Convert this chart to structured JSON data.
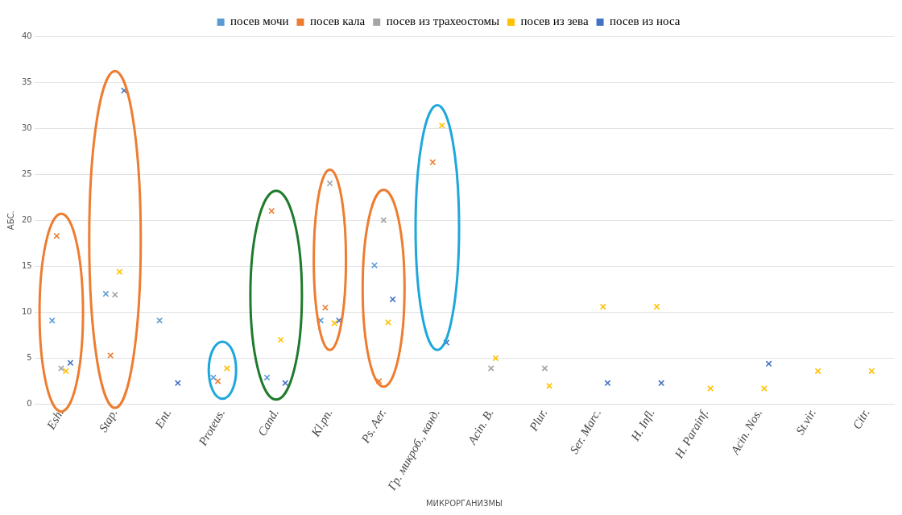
{
  "chart_data": {
    "type": "scatter",
    "xlabel": "МИКРОРГАНИЗМЫ",
    "ylabel": "АБС.",
    "categories": [
      "Esh.",
      "Stap.",
      "Ent.",
      "Proteus.",
      "Cand.",
      "Kl.pn.",
      "Ps. Aer.",
      "Гр. микроб., канд.",
      "Acin. B.",
      "Plur.",
      "Ser. Marc.",
      "H. Infl.",
      "H. Parainf.",
      "Acin. Nos.",
      "St.vir.",
      "Citr."
    ],
    "series": [
      {
        "name": "посев мочи",
        "color": "#5b9bd5",
        "values": [
          9.1,
          12.0,
          9.1,
          2.9,
          2.9,
          9.1,
          15.1,
          null,
          null,
          null,
          null,
          null,
          null,
          null,
          null,
          null
        ]
      },
      {
        "name": "посев кала",
        "color": "#ed7d31",
        "values": [
          18.3,
          5.3,
          null,
          2.5,
          21.0,
          10.5,
          2.5,
          26.3,
          null,
          null,
          null,
          null,
          null,
          null,
          null,
          null
        ]
      },
      {
        "name": "посев из трахеостомы",
        "color": "#a5a5a5",
        "values": [
          3.9,
          11.9,
          null,
          null,
          null,
          24.0,
          20.0,
          null,
          3.9,
          3.9,
          null,
          null,
          null,
          null,
          null,
          null
        ]
      },
      {
        "name": "посев из зева",
        "color": "#ffc000",
        "values": [
          3.6,
          14.4,
          null,
          3.9,
          7.0,
          8.8,
          8.9,
          30.3,
          5.0,
          2.0,
          10.6,
          10.6,
          1.7,
          1.7,
          3.6,
          3.6
        ]
      },
      {
        "name": "посев из носа",
        "color": "#4472c4",
        "values": [
          4.5,
          34.1,
          2.3,
          null,
          2.3,
          9.1,
          11.4,
          6.7,
          null,
          null,
          2.3,
          2.3,
          null,
          4.4,
          null,
          null
        ]
      }
    ],
    "ylim": [
      0,
      40
    ],
    "yticks": [
      0,
      5,
      10,
      15,
      20,
      25,
      30,
      35,
      40
    ],
    "grid": "y",
    "legend": "top",
    "marker": "cross"
  }
}
